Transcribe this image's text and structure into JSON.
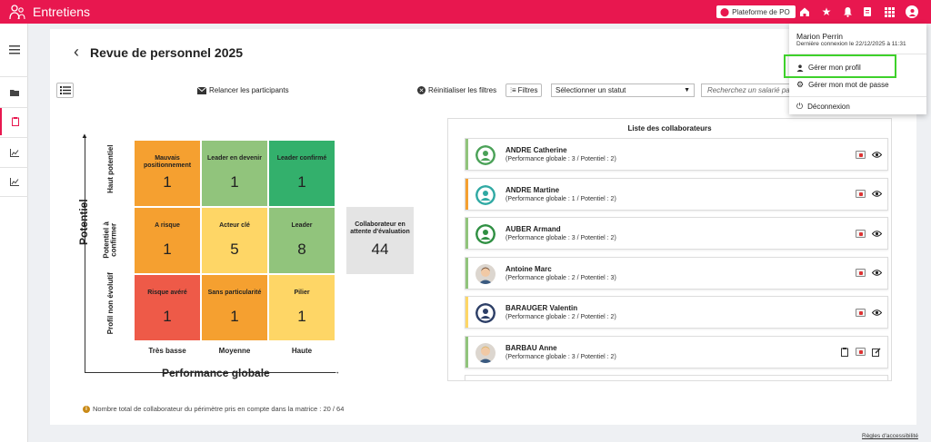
{
  "app": {
    "title": "Entretiens"
  },
  "header": {
    "platform_label": "Plateforme de PO",
    "icons": [
      "home-icon",
      "star-icon",
      "bell-icon",
      "agenda-icon",
      "grid-icon",
      "user-icon"
    ]
  },
  "rail": {
    "icons": [
      "menu-icon",
      "folder-icon",
      "clipboard-icon",
      "chart-icon",
      "chart-icon"
    ]
  },
  "page": {
    "title": "Revue de personnel 2025",
    "relaunch_label": "Relancer les participants",
    "reset_label": "Réinitialiser les filtres",
    "filters_label": "Filtres",
    "status_placeholder": "Sélectionner un statut",
    "search_placeholder": "Recherchez un salarié par nom"
  },
  "matrix": {
    "y_axis_label": "Potentiel",
    "x_axis_label": "Performance globale",
    "row_labels": [
      "Haut potentiel",
      "Potentiel à confirmer",
      "Profil non évolutif"
    ],
    "col_labels": [
      "Très basse",
      "Moyenne",
      "Haute"
    ],
    "cells": [
      {
        "title": "Mauvais positionnement",
        "count": "1",
        "color": "#f5a030"
      },
      {
        "title": "Leader en devenir",
        "count": "1",
        "color": "#91c47c"
      },
      {
        "title": "Leader confirmé",
        "count": "1",
        "color": "#33b06c"
      },
      {
        "title": "A risque",
        "count": "1",
        "color": "#f5a030"
      },
      {
        "title": "Acteur clé",
        "count": "5",
        "color": "#fed666"
      },
      {
        "title": "Leader",
        "count": "8",
        "color": "#91c47c"
      },
      {
        "title": "Risque avéré",
        "count": "1",
        "color": "#ee5a48"
      },
      {
        "title": "Sans particularité",
        "count": "1",
        "color": "#f5a030"
      },
      {
        "title": "Pilier",
        "count": "1",
        "color": "#fed666"
      }
    ],
    "pending_title": "Collaborateur en attente d'évaluation",
    "pending_count": "44",
    "total_note": "Nombre total de collaborateur du périmètre pris en compte dans la matrice : 20 / 64"
  },
  "collaborators": {
    "title": "Liste des collaborateurs",
    "items": [
      {
        "name": "ANDRE Catherine",
        "perf": "(Performance globale : 3 / Potentiel : 2)",
        "bar_color": "#91c47c",
        "avatar": "placeholder-green",
        "actions": [
          "file-icon",
          "eye-icon"
        ]
      },
      {
        "name": "ANDRE Martine",
        "perf": "(Performance globale : 1 / Potentiel : 2)",
        "bar_color": "#f5a030",
        "avatar": "placeholder-teal",
        "actions": [
          "file-icon",
          "eye-icon"
        ]
      },
      {
        "name": "AUBER Armand",
        "perf": "(Performance globale : 3 / Potentiel : 2)",
        "bar_color": "#91c47c",
        "avatar": "placeholder-darkgreen",
        "actions": [
          "file-icon",
          "eye-icon"
        ]
      },
      {
        "name": "Antoine Marc",
        "perf": "(Performance globale : 2 / Potentiel : 3)",
        "bar_color": "#91c47c",
        "avatar": "photo",
        "actions": [
          "file-icon",
          "eye-icon"
        ]
      },
      {
        "name": "BARAUGER Valentin",
        "perf": "(Performance globale : 2 / Potentiel : 2)",
        "bar_color": "#fed666",
        "avatar": "placeholder-navy",
        "actions": [
          "file-icon",
          "eye-icon"
        ]
      },
      {
        "name": "BARBAU Anne",
        "perf": "(Performance globale : 3 / Potentiel : 2)",
        "bar_color": "#91c47c",
        "avatar": "photo-blonde",
        "actions": [
          "clipboard-icon",
          "file-icon",
          "edit-icon"
        ]
      }
    ]
  },
  "user_menu": {
    "name": "Marion Perrin",
    "last_login": "Dernière connexion le 22/12/2025 à 11:31",
    "items": [
      "Gérer mon profil",
      "Gérer mon mot de passe",
      "Déconnexion"
    ]
  },
  "footer": {
    "accessibility": "Règles d'accessibilité"
  }
}
